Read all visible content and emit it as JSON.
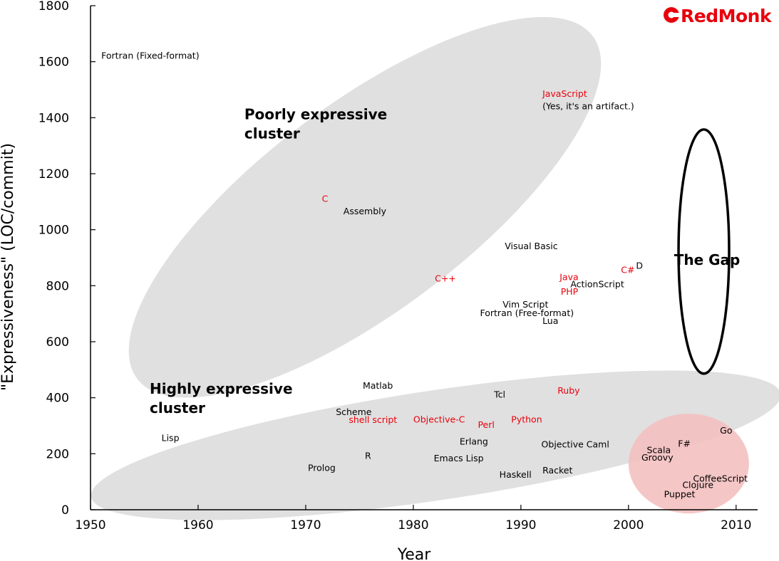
{
  "brand": {
    "name": "RedMonk",
    "color": "#e8000b"
  },
  "colors": {
    "highlight": "#e8000b",
    "normal": "#000000",
    "cluster_fill": "#e0e0e0",
    "modern_fill": "#f4c0c0"
  },
  "chart_data": {
    "type": "scatter",
    "title": "",
    "xlabel": "Year",
    "ylabel": "\"Expressiveness\" (LOC/commit)",
    "xlim": [
      1950,
      2012
    ],
    "ylim": [
      0,
      1800
    ],
    "x_ticks": [
      1950,
      1960,
      1970,
      1980,
      1990,
      2000,
      2010
    ],
    "y_ticks": [
      0,
      200,
      400,
      600,
      800,
      1000,
      1200,
      1400,
      1600,
      1800
    ],
    "grid": false,
    "points": [
      {
        "label": "Fortran (Fixed-format)",
        "x": 1951,
        "y": 1610,
        "highlight": false
      },
      {
        "label": "JavaScript",
        "x": 1992,
        "y": 1475,
        "highlight": true
      },
      {
        "label": "(Yes, it's an artifact.)",
        "x": 1992,
        "y": 1430,
        "highlight": false
      },
      {
        "label": "C",
        "x": 1971.5,
        "y": 1100,
        "highlight": true
      },
      {
        "label": "Assembly",
        "x": 1973.5,
        "y": 1055,
        "highlight": false
      },
      {
        "label": "Visual Basic",
        "x": 1988.5,
        "y": 930,
        "highlight": false
      },
      {
        "label": "C#",
        "x": 1999.3,
        "y": 845,
        "highlight": true
      },
      {
        "label": "D",
        "x": 2000.7,
        "y": 860,
        "highlight": false
      },
      {
        "label": "C++",
        "x": 1982,
        "y": 815,
        "highlight": true
      },
      {
        "label": "Java",
        "x": 1993.6,
        "y": 820,
        "highlight": true
      },
      {
        "label": "ActionScript",
        "x": 1994.6,
        "y": 795,
        "highlight": false
      },
      {
        "label": "PHP",
        "x": 1993.7,
        "y": 768,
        "highlight": true
      },
      {
        "label": "Vim Script",
        "x": 1988.3,
        "y": 722,
        "highlight": false
      },
      {
        "label": "Fortran (Free-format)",
        "x": 1986.2,
        "y": 692,
        "highlight": false
      },
      {
        "label": "Lua",
        "x": 1992,
        "y": 663,
        "highlight": false
      },
      {
        "label": "Matlab",
        "x": 1975.3,
        "y": 432,
        "highlight": false
      },
      {
        "label": "Tcl",
        "x": 1987.5,
        "y": 400,
        "highlight": false
      },
      {
        "label": "Ruby",
        "x": 1993.4,
        "y": 415,
        "highlight": true
      },
      {
        "label": "Scheme",
        "x": 1972.8,
        "y": 338,
        "highlight": false
      },
      {
        "label": "shell script",
        "x": 1974,
        "y": 310,
        "highlight": true
      },
      {
        "label": "Objective-C",
        "x": 1980,
        "y": 312,
        "highlight": true
      },
      {
        "label": "Python",
        "x": 1989.1,
        "y": 312,
        "highlight": true
      },
      {
        "label": "Perl",
        "x": 1986,
        "y": 292,
        "highlight": true
      },
      {
        "label": "Lisp",
        "x": 1956.6,
        "y": 245,
        "highlight": false
      },
      {
        "label": "Go",
        "x": 2008.5,
        "y": 272,
        "highlight": false
      },
      {
        "label": "Erlang",
        "x": 1984.3,
        "y": 232,
        "highlight": false
      },
      {
        "label": "Objective Caml",
        "x": 1991.9,
        "y": 222,
        "highlight": false
      },
      {
        "label": "F#",
        "x": 2004.6,
        "y": 225,
        "highlight": false
      },
      {
        "label": "Scala",
        "x": 2001.7,
        "y": 202,
        "highlight": false
      },
      {
        "label": "Groovy",
        "x": 2001.2,
        "y": 175,
        "highlight": false
      },
      {
        "label": "R",
        "x": 1975.5,
        "y": 182,
        "highlight": false
      },
      {
        "label": "Emacs Lisp",
        "x": 1981.9,
        "y": 173,
        "highlight": false
      },
      {
        "label": "Prolog",
        "x": 1970.2,
        "y": 138,
        "highlight": false
      },
      {
        "label": "Racket",
        "x": 1992,
        "y": 130,
        "highlight": false
      },
      {
        "label": "Haskell",
        "x": 1988,
        "y": 115,
        "highlight": false
      },
      {
        "label": "CoffeeScript",
        "x": 2006,
        "y": 100,
        "highlight": false
      },
      {
        "label": "Clojure",
        "x": 2005,
        "y": 78,
        "highlight": false
      },
      {
        "label": "Puppet",
        "x": 2003.3,
        "y": 45,
        "highlight": false
      }
    ],
    "clusters": [
      {
        "label_lines": [
          "Poorly expressive",
          "cluster"
        ],
        "label_at": [
          1964.3,
          1395
        ],
        "cx": 1975.5,
        "cy": 1080,
        "rx": 26.5,
        "ry": 370,
        "angle": 37,
        "style": "gray"
      },
      {
        "label_lines": [
          "Highly expressive",
          "cluster"
        ],
        "label_at": [
          1955.5,
          415
        ],
        "cx": 1982.1,
        "cy": 230,
        "rx": 32.4,
        "ry": 196,
        "angle": 8.5,
        "style": "gray"
      },
      {
        "label_lines": [],
        "label_at": null,
        "cx": 2005.6,
        "cy": 165,
        "rx": 5.6,
        "ry": 178,
        "angle": 0,
        "style": "pink"
      },
      {
        "label_lines": [
          "The Gap"
        ],
        "label_at": [
          2007.3,
          875
        ],
        "cx": 2007,
        "cy": 922,
        "rx": 2.35,
        "ry": 436,
        "angle": 0,
        "style": "outline"
      }
    ]
  }
}
